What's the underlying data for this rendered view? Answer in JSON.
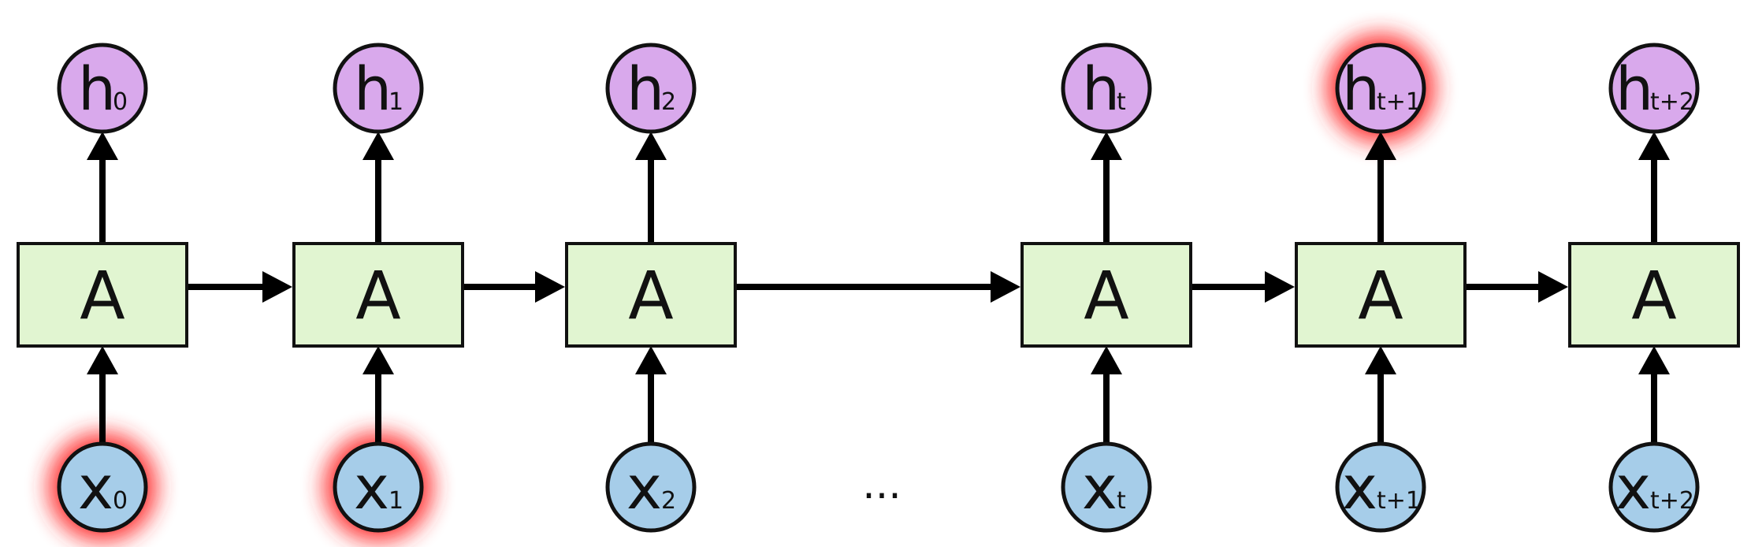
{
  "diagram": {
    "cell_label": "A",
    "ellipsis": "...",
    "timesteps": [
      {
        "hidden": "h",
        "hidden_sub": "0",
        "input": "x",
        "input_sub": "0",
        "input_highlight": true,
        "hidden_highlight": false
      },
      {
        "hidden": "h",
        "hidden_sub": "1",
        "input": "x",
        "input_sub": "1",
        "input_highlight": true,
        "hidden_highlight": false
      },
      {
        "hidden": "h",
        "hidden_sub": "2",
        "input": "x",
        "input_sub": "2",
        "input_highlight": false,
        "hidden_highlight": false
      },
      {
        "hidden": "h",
        "hidden_sub": "t",
        "input": "x",
        "input_sub": "t",
        "input_highlight": false,
        "hidden_highlight": false
      },
      {
        "hidden": "h",
        "hidden_sub": "t+1",
        "input": "x",
        "input_sub": "t+1",
        "input_highlight": false,
        "hidden_highlight": true
      },
      {
        "hidden": "h",
        "hidden_sub": "t+2",
        "input": "x",
        "input_sub": "t+2",
        "input_highlight": false,
        "hidden_highlight": false
      }
    ],
    "colors": {
      "cell_fill": "#e1f5d1",
      "hidden_fill": "#d9a9ec",
      "input_fill": "#a6cde9",
      "highlight_glow": "#ff2a2a",
      "stroke": "#111111"
    }
  }
}
